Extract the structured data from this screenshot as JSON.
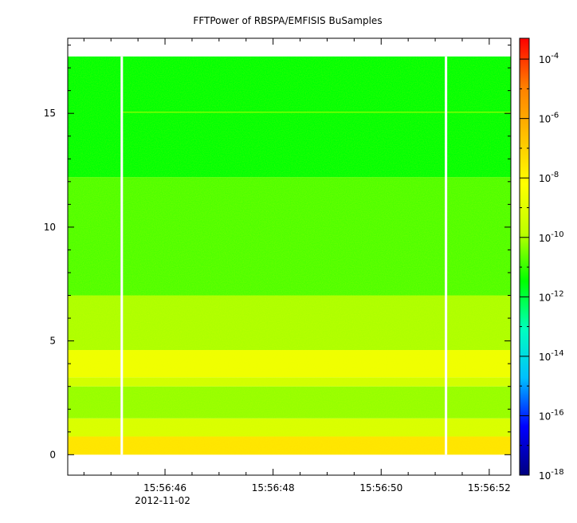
{
  "chart_data": {
    "type": "heatmap",
    "title": "FFTPower of RBSPA/EMFISIS  BuSamples",
    "xlabel": "",
    "ylabel": "",
    "x_ticks": [
      "15:56:46",
      "15:56:48",
      "15:56:50",
      "15:56:52"
    ],
    "x_date_label": "2012-11-02",
    "xlim": [
      "15:56:44.2",
      "15:56:52.4"
    ],
    "x_tick_seconds": [
      46,
      48,
      50,
      52
    ],
    "xlim_seconds": [
      44.2,
      52.4
    ],
    "y_ticks": [
      0,
      5,
      10,
      15
    ],
    "ylim": [
      -0.9,
      18.3
    ],
    "data_y_range": [
      0,
      17.5
    ],
    "data_gaps_seconds": [
      45.2,
      51.2
    ],
    "colorbar": {
      "scale": "log",
      "range_exponent": [
        -18,
        -3.3
      ],
      "tick_exponents": [
        -4,
        -6,
        -8,
        -10,
        -12,
        -14,
        -16,
        -18
      ],
      "tick_base": "10",
      "colors": [
        "#00007f",
        "#0000ff",
        "#00bfff",
        "#00ffbf",
        "#00ff00",
        "#bfff00",
        "#ffff00",
        "#ffbf00",
        "#ff7f00",
        "#ff0000"
      ]
    },
    "bands": [
      {
        "y": [
          0,
          0.8
        ],
        "level_exponent": -7.5
      },
      {
        "y": [
          0.8,
          1.6
        ],
        "level_exponent": -9.2
      },
      {
        "y": [
          1.6,
          3.0
        ],
        "level_exponent": -10.2
      },
      {
        "y": [
          3.0,
          3.4
        ],
        "level_exponent": -9.4
      },
      {
        "y": [
          3.4,
          4.6
        ],
        "level_exponent": -8.6
      },
      {
        "y": [
          4.6,
          7.0
        ],
        "level_exponent": -10.0
      },
      {
        "y": [
          7.0,
          12.2
        ],
        "level_exponent": -10.8
      },
      {
        "y": [
          12.2,
          17.5
        ],
        "level_exponent": -11.5
      }
    ],
    "grid": false
  }
}
